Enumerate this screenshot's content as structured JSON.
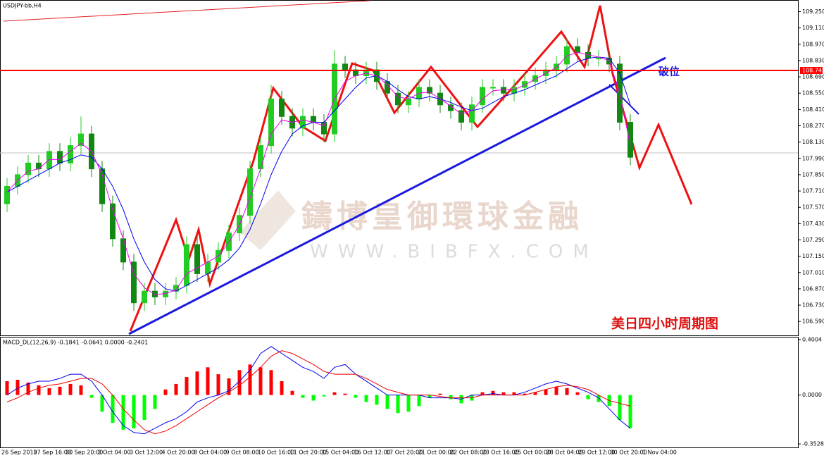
{
  "chart_data": [
    {
      "type": "candlestick",
      "title": "USDJPY-bb,H4",
      "up_color": "#22cc22",
      "down_color": "#118811",
      "ylim": [
        106.47,
        109.35
      ],
      "yticks": [
        {
          "value": 109.25,
          "label": "109.250"
        },
        {
          "value": 109.11,
          "label": "109.110"
        },
        {
          "value": 108.97,
          "label": "108.970"
        },
        {
          "value": 108.83,
          "label": "108.830"
        },
        {
          "value": 108.69,
          "label": "108.690"
        },
        {
          "value": 108.55,
          "label": "108.550"
        },
        {
          "value": 108.41,
          "label": "108.410"
        },
        {
          "value": 108.27,
          "label": "108.270"
        },
        {
          "value": 108.13,
          "label": "108.130"
        },
        {
          "value": 107.99,
          "label": "107.990"
        },
        {
          "value": 107.85,
          "label": "107.850"
        },
        {
          "value": 107.71,
          "label": "107.710"
        },
        {
          "value": 107.57,
          "label": "107.570"
        },
        {
          "value": 107.43,
          "label": "107.430"
        },
        {
          "value": 107.29,
          "label": "107.290"
        },
        {
          "value": 107.15,
          "label": "107.150"
        },
        {
          "value": 107.01,
          "label": "107.010"
        },
        {
          "value": 106.87,
          "label": "106.870"
        },
        {
          "value": 106.73,
          "label": "106.730"
        },
        {
          "value": 106.59,
          "label": "106.590"
        }
      ],
      "hline": {
        "value": 108.745,
        "label": "108.745",
        "color": "#ff0000"
      },
      "open": [
        107.6,
        107.75,
        107.85,
        107.95,
        107.9,
        108.05,
        107.95,
        108.1,
        108.2,
        107.9,
        107.6,
        107.3,
        107.1,
        106.75,
        106.85,
        106.8,
        106.85,
        106.9,
        107.25,
        107.0,
        107.1,
        107.2,
        107.35,
        107.5,
        107.9,
        108.1,
        108.5,
        108.35,
        108.25,
        108.35,
        108.3,
        108.2,
        108.8,
        108.75,
        108.7,
        108.75,
        108.65,
        108.55,
        108.45,
        108.5,
        108.6,
        108.55,
        108.45,
        108.4,
        108.3,
        108.45,
        108.6,
        108.6,
        108.55,
        108.6,
        108.65,
        108.7,
        108.75,
        108.8,
        108.95,
        108.9,
        108.85,
        108.85,
        108.8,
        108.3
      ],
      "high": [
        107.82,
        107.92,
        108.02,
        108.02,
        108.12,
        108.12,
        108.17,
        108.35,
        108.27,
        107.97,
        107.67,
        107.37,
        107.17,
        106.92,
        106.92,
        106.92,
        106.97,
        107.32,
        107.32,
        107.17,
        107.27,
        107.42,
        107.57,
        107.97,
        108.17,
        108.62,
        108.57,
        108.42,
        108.42,
        108.42,
        108.37,
        108.92,
        108.87,
        108.82,
        108.82,
        108.82,
        108.72,
        108.62,
        108.57,
        108.67,
        108.67,
        108.62,
        108.52,
        108.47,
        108.52,
        108.67,
        108.67,
        108.67,
        108.67,
        108.72,
        108.77,
        108.82,
        108.87,
        109.02,
        109.02,
        108.97,
        108.92,
        108.92,
        108.87,
        108.37
      ],
      "low": [
        107.53,
        107.68,
        107.78,
        107.83,
        107.83,
        107.88,
        107.88,
        108.03,
        107.83,
        107.53,
        107.23,
        107.03,
        106.68,
        106.68,
        106.73,
        106.73,
        106.78,
        106.83,
        106.93,
        106.93,
        107.03,
        107.13,
        107.28,
        107.43,
        107.83,
        108.03,
        108.28,
        108.18,
        108.18,
        108.23,
        108.13,
        108.13,
        108.68,
        108.63,
        108.63,
        108.58,
        108.48,
        108.38,
        108.38,
        108.43,
        108.48,
        108.38,
        108.33,
        108.23,
        108.23,
        108.38,
        108.53,
        108.48,
        108.48,
        108.53,
        108.58,
        108.63,
        108.68,
        108.73,
        108.83,
        108.78,
        108.78,
        108.73,
        108.23,
        107.93
      ],
      "close": [
        107.75,
        107.85,
        107.95,
        107.9,
        108.05,
        107.95,
        108.1,
        108.2,
        107.9,
        107.6,
        107.3,
        107.1,
        106.75,
        106.85,
        106.8,
        106.85,
        106.9,
        107.25,
        107.0,
        107.1,
        107.2,
        107.35,
        107.5,
        107.9,
        108.1,
        108.5,
        108.35,
        108.25,
        108.35,
        108.3,
        108.2,
        108.8,
        108.75,
        108.7,
        108.75,
        108.65,
        108.55,
        108.45,
        108.5,
        108.6,
        108.55,
        108.45,
        108.4,
        108.3,
        108.45,
        108.6,
        108.6,
        108.55,
        108.6,
        108.65,
        108.7,
        108.75,
        108.8,
        108.95,
        108.9,
        108.85,
        108.85,
        108.8,
        108.3,
        108.0
      ],
      "series": [
        {
          "color": "#0000ee",
          "values": [
            107.7,
            107.75,
            107.8,
            107.85,
            107.9,
            107.95,
            107.98,
            108.02,
            108.0,
            107.9,
            107.75,
            107.55,
            107.3,
            107.1,
            106.95,
            106.87,
            106.85,
            106.9,
            106.95,
            107.0,
            107.05,
            107.12,
            107.22,
            107.38,
            107.6,
            107.85,
            108.05,
            108.2,
            108.27,
            108.3,
            108.3,
            108.4,
            108.5,
            108.6,
            108.68,
            108.7,
            108.65,
            108.58,
            108.52,
            108.5,
            108.52,
            108.5,
            108.47,
            108.43,
            108.4,
            108.42,
            108.47,
            108.52,
            108.55,
            108.58,
            108.62,
            108.66,
            108.7,
            108.76,
            108.82,
            108.85,
            108.86,
            108.85,
            108.72,
            108.45
          ]
        },
        {
          "color": "#ee00ee",
          "values": [
            107.7,
            107.8,
            107.88,
            107.9,
            107.98,
            107.98,
            108.05,
            108.12,
            108.05,
            107.85,
            107.55,
            107.3,
            107.0,
            106.88,
            106.82,
            106.83,
            106.86,
            107.0,
            107.05,
            107.1,
            107.15,
            107.27,
            107.42,
            107.65,
            107.9,
            108.2,
            108.32,
            108.3,
            108.32,
            108.3,
            108.27,
            108.5,
            108.65,
            108.7,
            108.72,
            108.7,
            108.62,
            108.52,
            108.5,
            108.55,
            108.56,
            108.5,
            108.44,
            108.37,
            108.4,
            108.5,
            108.57,
            108.58,
            108.58,
            108.62,
            108.67,
            108.72,
            108.77,
            108.87,
            108.9,
            108.88,
            108.86,
            108.83,
            108.55,
            108.1
          ]
        }
      ],
      "annotations": [
        "破位",
        "美日四小时周期图"
      ],
      "watermark": [
        "鑄博皇御環球金融",
        "WWW.BIBFX.COM"
      ]
    },
    {
      "type": "macd",
      "title": "MACD_DL(12,26,9) -0.1841 -0.0641 0.0000 -0.2401",
      "ylim": [
        -0.383,
        0.42
      ],
      "yticks": [
        0.4004,
        {
          "value": 0,
          "label": "0.0000"
        },
        -0.3528
      ],
      "pos_color": "#ff0000",
      "neg_color": "#00ff00",
      "histogram": [
        0.1,
        0.11,
        0.09,
        0.07,
        0.05,
        0.06,
        0.08,
        0.07,
        -0.02,
        -0.12,
        -0.2,
        -0.25,
        -0.24,
        -0.18,
        -0.1,
        0.04,
        0.08,
        0.13,
        0.17,
        0.2,
        0.15,
        0.12,
        0.18,
        0.22,
        0.2,
        0.18,
        0.1,
        0.03,
        -0.02,
        -0.04,
        -0.01,
        0.02,
        0.01,
        -0.02,
        -0.05,
        -0.07,
        -0.1,
        -0.13,
        -0.12,
        -0.08,
        -0.02,
        0.01,
        -0.03,
        -0.06,
        -0.04,
        0.02,
        0.03,
        0.02,
        0.02,
        0.01,
        0.02,
        0.04,
        0.06,
        0.05,
        0.02,
        -0.03,
        -0.05,
        -0.08,
        -0.18,
        -0.24
      ],
      "series": [
        {
          "color": "#0000ee",
          "values": [
            0,
            0.05,
            0.08,
            0.1,
            0.1,
            0.12,
            0.15,
            0.15,
            0.1,
            0.0,
            -0.12,
            -0.22,
            -0.27,
            -0.28,
            -0.24,
            -0.2,
            -0.17,
            -0.12,
            -0.05,
            -0.02,
            0.0,
            0.03,
            0.1,
            0.18,
            0.3,
            0.35,
            0.3,
            0.25,
            0.2,
            0.17,
            0.12,
            0.2,
            0.22,
            0.15,
            0.1,
            0.05,
            0.0,
            0.0,
            0.0,
            0.0,
            -0.02,
            -0.02,
            -0.02,
            -0.03,
            0.0,
            0.0,
            0.01,
            0.0,
            0.0,
            0.02,
            0.05,
            0.08,
            0.1,
            0.08,
            0.05,
            0.02,
            -0.02,
            -0.1,
            -0.18,
            -0.24
          ]
        },
        {
          "color": "#ee0000",
          "values": [
            -0.05,
            -0.02,
            0.02,
            0.05,
            0.07,
            0.08,
            0.1,
            0.12,
            0.12,
            0.08,
            0.0,
            -0.1,
            -0.18,
            -0.25,
            -0.28,
            -0.26,
            -0.22,
            -0.17,
            -0.12,
            -0.07,
            -0.02,
            0.02,
            0.07,
            0.13,
            0.2,
            0.28,
            0.32,
            0.3,
            0.26,
            0.22,
            0.17,
            0.15,
            0.15,
            0.15,
            0.12,
            0.08,
            0.04,
            0.02,
            0.0,
            0.0,
            0.0,
            -0.01,
            -0.02,
            -0.02,
            -0.02,
            0.0,
            0.0,
            0.0,
            0.0,
            0.0,
            0.02,
            0.04,
            0.06,
            0.07,
            0.06,
            0.04,
            0.0,
            -0.04,
            -0.06,
            -0.08
          ]
        }
      ],
      "xtick_labels": [
        "26 Sep 2019",
        "27 Sep 16:00",
        "30 Sep 20:00",
        "2 Oct 04:00",
        "3 Oct 12:00",
        "4 Oct 20:00",
        "8 Oct 04:00",
        "9 Oct 08:00",
        "10 Oct 16:00",
        "11 Oct 20:00",
        "15 Oct 04:00",
        "16 Oct 12:00",
        "17 Oct 20:00",
        "21 Oct 00:00",
        "22 Oct 08:00",
        "23 Oct 16:00",
        "25 Oct 00:00",
        "28 Oct 04:00",
        "29 Oct 12:00",
        "30 Oct 20:00",
        "1 Nov 04:00"
      ]
    }
  ]
}
